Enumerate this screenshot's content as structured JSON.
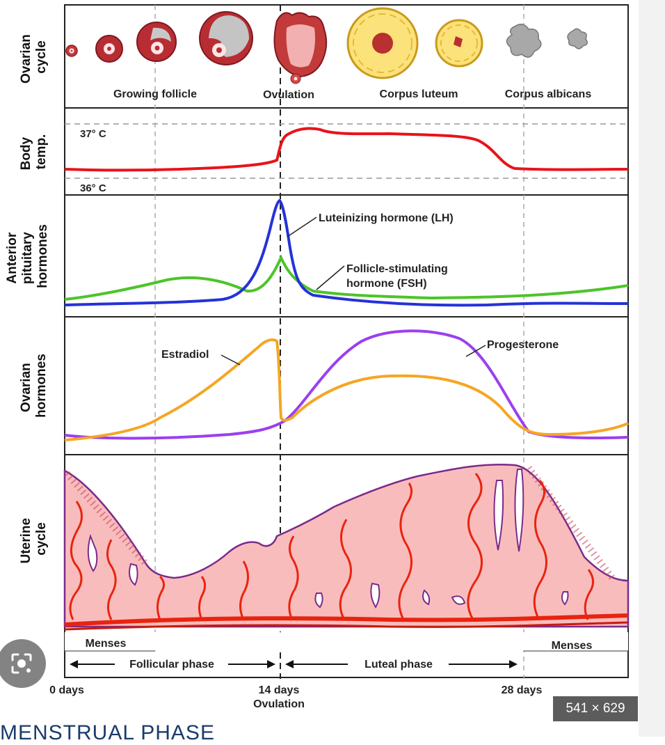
{
  "panels": {
    "ovarian_cycle": "Ovarian cycle",
    "body_temp": "Body temp.",
    "anterior_pituitary": "Anterior pituitary hormones",
    "ovarian_hormones": "Ovarian hormones",
    "uterine_cycle": "Uterine cycle"
  },
  "ovarian_stages": {
    "growing_follicle": "Growing follicle",
    "ovulation": "Ovulation",
    "corpus_luteum": "Corpus luteum",
    "corpus_albicans": "Corpus albicans"
  },
  "temperature": {
    "high": "37° C",
    "low": "36° C"
  },
  "hormones": {
    "lh": "Luteinizing hormone (LH)",
    "fsh_line1": "Follicle-stimulating",
    "fsh_line2": "hormone (FSH)",
    "estradiol": "Estradiol",
    "progesterone": "Progesterone"
  },
  "phases": {
    "menses_left": "Menses",
    "menses_right": "Menses",
    "follicular": "Follicular phase",
    "luteal": "Luteal phase"
  },
  "timeline": {
    "day0": "0 days",
    "day14": "14 days",
    "day14_sub": "Ovulation",
    "day28": "28 days"
  },
  "overlay": {
    "image_size": "541 × 629",
    "caption": "MENSTRUAL PHASE"
  },
  "colors": {
    "temperature": "#e8131a",
    "lh": "#2532d8",
    "fsh": "#4dc42a",
    "estradiol": "#f5a623",
    "progesterone": "#9b3ff0",
    "endometrium": "#f9bcbc",
    "vessel": "#e8240f",
    "gland_edge": "#7a2b8a"
  },
  "icons": [
    "visual-search-lens-icon"
  ]
}
